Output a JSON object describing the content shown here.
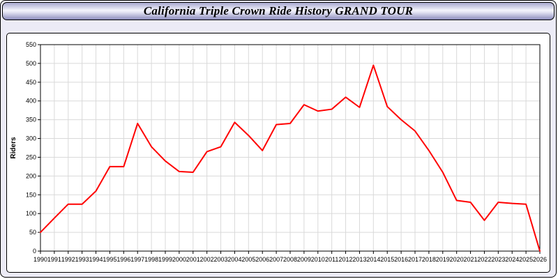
{
  "title_bar": {
    "title": "California Triple Crown Ride History GRAND TOUR"
  },
  "colors": {
    "line": "#ff0000",
    "grid": "#d9d9d9",
    "axis": "#000000",
    "plot_background": "#ffffff",
    "page_background": "#ecebf6"
  },
  "chart_data": {
    "type": "line",
    "title": "California Triple Crown Ride History GRAND TOUR",
    "xlabel": "",
    "ylabel": "Riders",
    "ylim": [
      0,
      550
    ],
    "ytick_step": 50,
    "grid": true,
    "legend": false,
    "line_color": "#ff0000",
    "x": [
      1990,
      1991,
      1992,
      1993,
      1994,
      1995,
      1996,
      1997,
      1998,
      1999,
      2000,
      2001,
      2002,
      2003,
      2004,
      2005,
      2006,
      2007,
      2008,
      2009,
      2010,
      2011,
      2012,
      2013,
      2014,
      2015,
      2016,
      2017,
      2018,
      2019,
      2020,
      2021,
      2022,
      2023,
      2024,
      2025,
      2026
    ],
    "series": [
      {
        "name": "Riders",
        "values": [
          50,
          88,
          125,
          125,
          160,
          225,
          225,
          340,
          278,
          240,
          212,
          210,
          265,
          278,
          343,
          308,
          268,
          337,
          340,
          390,
          373,
          378,
          410,
          383,
          495,
          385,
          350,
          320,
          268,
          210,
          135,
          130,
          82,
          130,
          127,
          125,
          0
        ]
      }
    ]
  }
}
